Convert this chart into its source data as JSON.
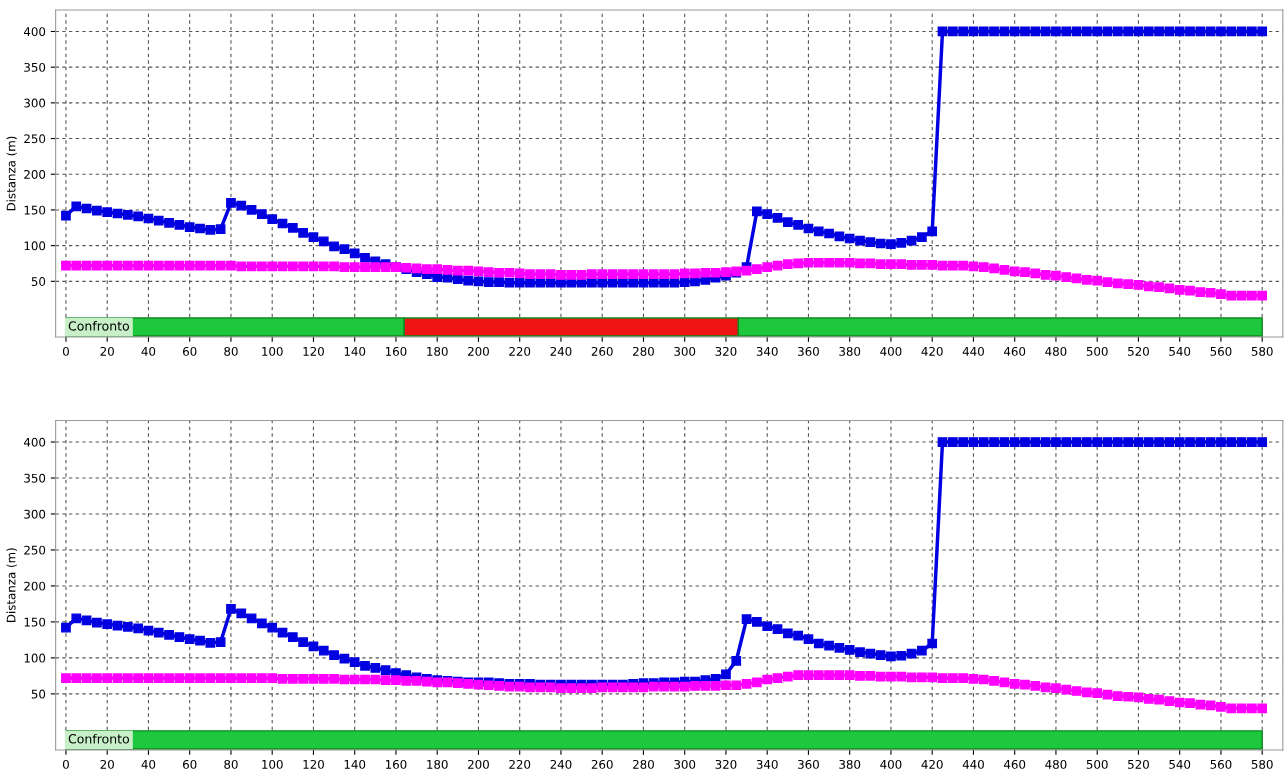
{
  "chart_data": [
    {
      "type": "line",
      "ylabel": "Distanza (m)",
      "grid": true,
      "marker": "square",
      "line_style": "solid",
      "xlim": [
        -5,
        590
      ],
      "xticks": [
        0,
        20,
        40,
        60,
        80,
        100,
        120,
        140,
        160,
        180,
        200,
        220,
        240,
        260,
        280,
        300,
        320,
        340,
        360,
        380,
        400,
        420,
        440,
        460,
        480,
        500,
        520,
        540,
        560,
        580
      ],
      "ylim": [
        -28,
        430
      ],
      "yticks": [
        50,
        100,
        150,
        200,
        250,
        300,
        350,
        400
      ],
      "x": [
        0,
        5,
        10,
        15,
        20,
        25,
        30,
        35,
        40,
        45,
        50,
        55,
        60,
        65,
        70,
        75,
        80,
        85,
        90,
        95,
        100,
        105,
        110,
        115,
        120,
        125,
        130,
        135,
        140,
        145,
        150,
        155,
        160,
        165,
        170,
        175,
        180,
        185,
        190,
        195,
        200,
        205,
        210,
        215,
        220,
        225,
        230,
        235,
        240,
        245,
        250,
        255,
        260,
        265,
        270,
        275,
        280,
        285,
        290,
        295,
        300,
        305,
        310,
        315,
        320,
        325,
        330,
        335,
        340,
        345,
        350,
        355,
        360,
        365,
        370,
        375,
        380,
        385,
        390,
        395,
        400,
        405,
        410,
        415,
        420,
        425,
        430,
        435,
        440,
        445,
        450,
        455,
        460,
        465,
        470,
        475,
        480,
        485,
        490,
        495,
        500,
        505,
        510,
        515,
        520,
        525,
        530,
        535,
        540,
        545,
        550,
        555,
        560,
        565,
        570,
        575,
        580
      ],
      "series": [
        {
          "color": "#0000e0",
          "values": [
            142,
            155,
            152,
            149,
            147,
            145,
            143,
            141,
            138,
            135,
            132,
            129,
            126,
            124,
            122,
            123,
            160,
            156,
            150,
            144,
            137,
            131,
            125,
            118,
            112,
            106,
            99,
            95,
            89,
            83,
            78,
            74,
            70,
            67,
            63,
            60,
            56,
            55,
            53,
            51,
            50,
            49,
            49,
            48,
            48,
            48,
            48,
            48,
            48,
            48,
            48,
            48,
            48,
            48,
            48,
            48,
            48,
            48,
            48,
            48,
            49,
            50,
            52,
            55,
            58,
            62,
            70,
            148,
            144,
            139,
            133,
            129,
            124,
            120,
            117,
            113,
            110,
            107,
            105,
            103,
            102,
            104,
            107,
            112,
            120,
            400,
            400,
            400,
            400,
            400,
            400,
            400,
            400,
            400,
            400,
            400,
            400,
            400,
            400,
            400,
            400,
            400,
            400,
            400,
            400,
            400,
            400,
            400,
            400,
            400,
            400,
            400,
            400,
            400,
            400,
            400,
            400
          ]
        },
        {
          "color": "#ff00ff",
          "values": [
            72,
            72,
            72,
            72,
            72,
            72,
            72,
            72,
            72,
            72,
            72,
            72,
            72,
            72,
            72,
            72,
            72,
            71,
            71,
            71,
            71,
            71,
            71,
            71,
            71,
            71,
            71,
            70,
            70,
            70,
            70,
            70,
            70,
            69,
            68,
            67,
            67,
            66,
            65,
            65,
            64,
            63,
            62,
            62,
            61,
            60,
            60,
            60,
            59,
            59,
            59,
            60,
            60,
            60,
            60,
            60,
            60,
            60,
            60,
            60,
            61,
            61,
            62,
            62,
            63,
            64,
            65,
            67,
            70,
            72,
            74,
            75,
            76,
            76,
            76,
            76,
            76,
            75,
            75,
            74,
            74,
            74,
            73,
            73,
            73,
            72,
            72,
            72,
            71,
            70,
            68,
            66,
            64,
            63,
            61,
            59,
            58,
            56,
            54,
            52,
            51,
            49,
            47,
            46,
            45,
            43,
            42,
            40,
            38,
            37,
            35,
            34,
            32,
            30,
            30,
            30,
            30
          ]
        }
      ],
      "bands": [
        {
          "axis": "x",
          "from": 0,
          "to": 164,
          "color": "#1ec83c"
        },
        {
          "axis": "x",
          "from": 164,
          "to": 326,
          "color": "#f01414"
        },
        {
          "axis": "x",
          "from": 326,
          "to": 580,
          "color": "#1ec83c"
        }
      ],
      "annotations": [
        "Confronto"
      ]
    },
    {
      "type": "line",
      "ylabel": "Distanza (m)",
      "grid": true,
      "marker": "square",
      "line_style": "solid",
      "xlim": [
        -5,
        590
      ],
      "xticks": [
        0,
        20,
        40,
        60,
        80,
        100,
        120,
        140,
        160,
        180,
        200,
        220,
        240,
        260,
        280,
        300,
        320,
        340,
        360,
        380,
        400,
        420,
        440,
        460,
        480,
        500,
        520,
        540,
        560,
        580
      ],
      "ylim": [
        -28,
        430
      ],
      "yticks": [
        50,
        100,
        150,
        200,
        250,
        300,
        350,
        400
      ],
      "x": [
        0,
        5,
        10,
        15,
        20,
        25,
        30,
        35,
        40,
        45,
        50,
        55,
        60,
        65,
        70,
        75,
        80,
        85,
        90,
        95,
        100,
        105,
        110,
        115,
        120,
        125,
        130,
        135,
        140,
        145,
        150,
        155,
        160,
        165,
        170,
        175,
        180,
        185,
        190,
        195,
        200,
        205,
        210,
        215,
        220,
        225,
        230,
        235,
        240,
        245,
        250,
        255,
        260,
        265,
        270,
        275,
        280,
        285,
        290,
        295,
        300,
        305,
        310,
        315,
        320,
        325,
        330,
        335,
        340,
        345,
        350,
        355,
        360,
        365,
        370,
        375,
        380,
        385,
        390,
        395,
        400,
        405,
        410,
        415,
        420,
        425,
        430,
        435,
        440,
        445,
        450,
        455,
        460,
        465,
        470,
        475,
        480,
        485,
        490,
        495,
        500,
        505,
        510,
        515,
        520,
        525,
        530,
        535,
        540,
        545,
        550,
        555,
        560,
        565,
        570,
        575,
        580
      ],
      "series": [
        {
          "color": "#0000e0",
          "values": [
            142,
            155,
            152,
            149,
            147,
            145,
            143,
            141,
            138,
            135,
            132,
            129,
            126,
            124,
            121,
            122,
            168,
            162,
            155,
            148,
            142,
            135,
            129,
            122,
            116,
            110,
            104,
            99,
            94,
            89,
            86,
            83,
            79,
            76,
            73,
            71,
            69,
            68,
            67,
            66,
            66,
            66,
            65,
            64,
            64,
            64,
            63,
            63,
            63,
            63,
            63,
            63,
            63,
            63,
            63,
            64,
            65,
            65,
            66,
            66,
            67,
            67,
            69,
            71,
            77,
            96,
            154,
            150,
            144,
            140,
            134,
            131,
            126,
            120,
            117,
            114,
            111,
            108,
            106,
            104,
            102,
            103,
            106,
            110,
            120,
            400,
            400,
            400,
            400,
            400,
            400,
            400,
            400,
            400,
            400,
            400,
            400,
            400,
            400,
            400,
            400,
            400,
            400,
            400,
            400,
            400,
            400,
            400,
            400,
            400,
            400,
            400,
            400,
            400,
            400,
            400,
            400
          ]
        },
        {
          "color": "#ff00ff",
          "values": [
            72,
            72,
            72,
            72,
            72,
            72,
            72,
            72,
            72,
            72,
            72,
            72,
            72,
            72,
            72,
            72,
            72,
            72,
            72,
            72,
            72,
            71,
            71,
            71,
            71,
            71,
            71,
            70,
            70,
            70,
            70,
            69,
            69,
            68,
            68,
            67,
            66,
            66,
            65,
            64,
            63,
            62,
            61,
            60,
            60,
            59,
            59,
            59,
            58,
            58,
            58,
            58,
            59,
            59,
            59,
            59,
            59,
            60,
            60,
            60,
            60,
            61,
            61,
            61,
            62,
            62,
            64,
            66,
            70,
            72,
            74,
            76,
            76,
            76,
            76,
            76,
            76,
            75,
            75,
            74,
            74,
            74,
            73,
            73,
            73,
            72,
            72,
            72,
            71,
            70,
            68,
            66,
            64,
            63,
            61,
            59,
            58,
            56,
            54,
            52,
            51,
            49,
            47,
            46,
            45,
            43,
            42,
            40,
            38,
            37,
            35,
            34,
            32,
            30,
            30,
            30,
            30
          ]
        }
      ],
      "bands": [
        {
          "axis": "x",
          "from": 0,
          "to": 580,
          "color": "#1ec83c"
        }
      ],
      "annotations": [
        "Confronto"
      ]
    }
  ]
}
